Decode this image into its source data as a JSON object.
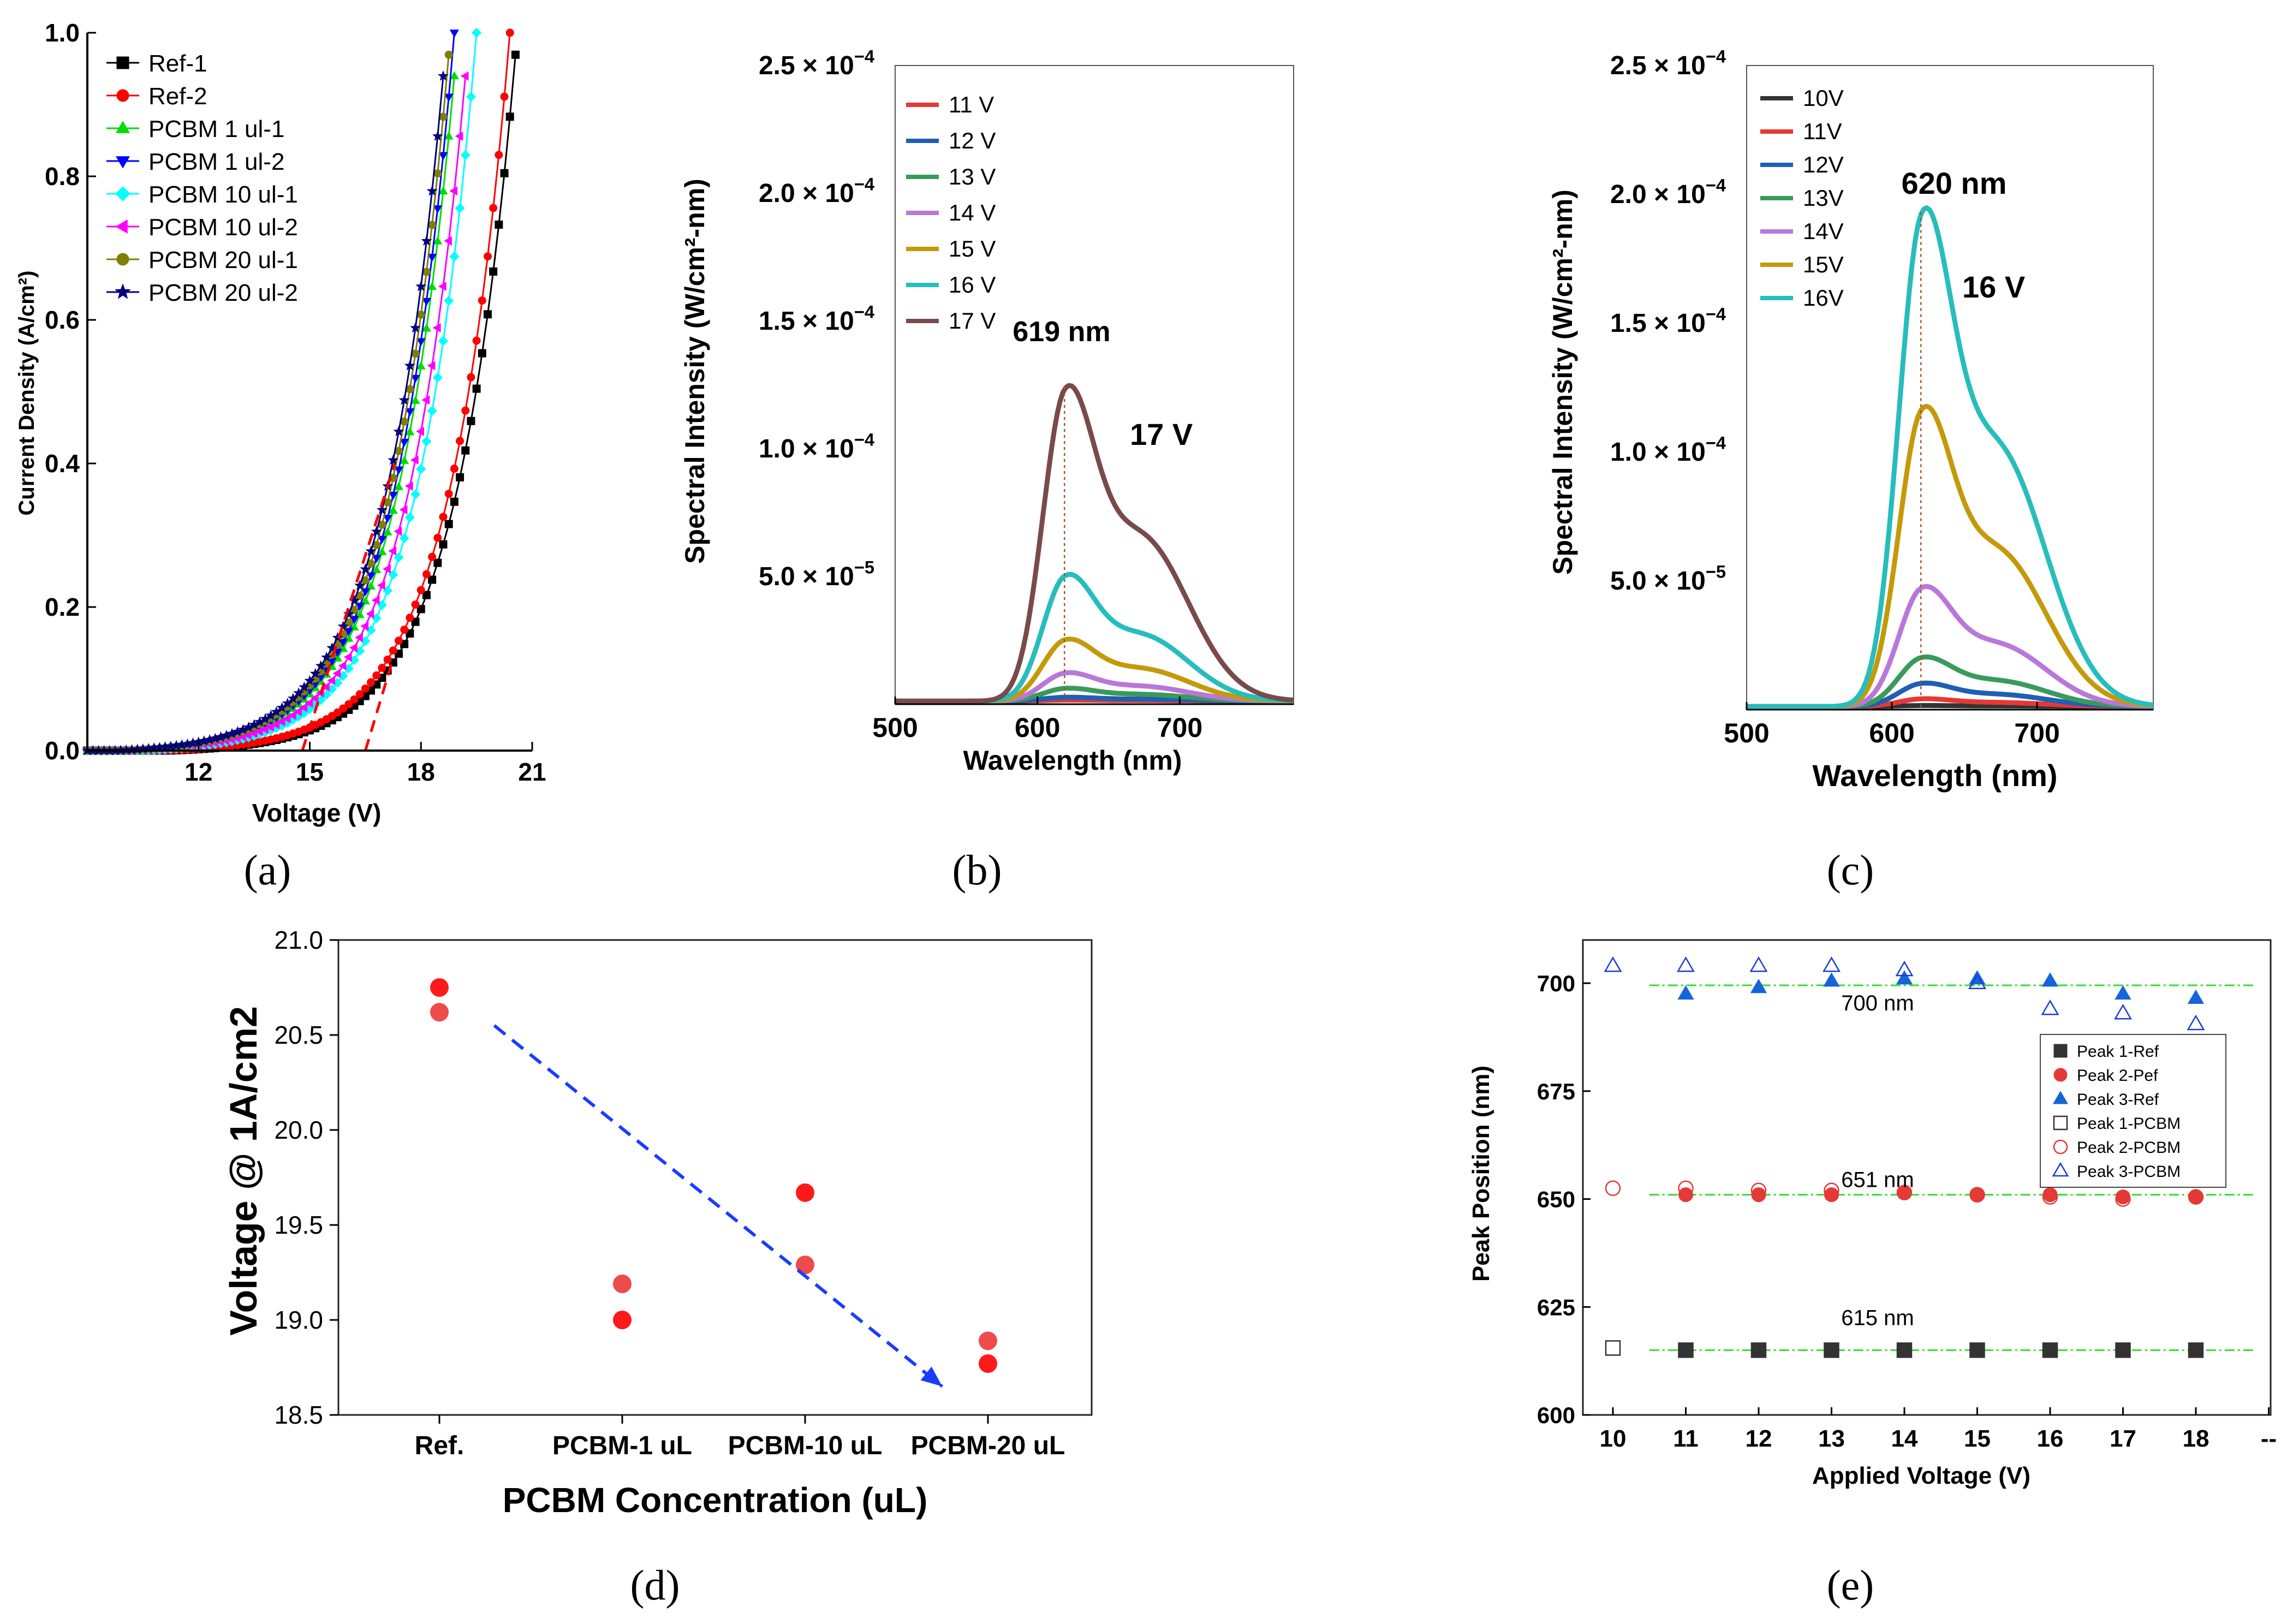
{
  "panels": [
    {
      "id": "a",
      "caption": "(a)",
      "title": "",
      "type": "line",
      "xlabel": "Voltage (V)",
      "ylabel": "Current Density (A/cm²)",
      "xlim": [
        9,
        21
      ],
      "ylim": [
        0,
        1.0
      ],
      "xticks": [
        {
          "v": 12,
          "label": "12"
        },
        {
          "v": 15,
          "label": "15"
        },
        {
          "v": 18,
          "label": "18"
        },
        {
          "v": 21,
          "label": "21"
        }
      ],
      "yticks": [
        {
          "v": 0,
          "label": "0.0"
        },
        {
          "v": 0.2,
          "label": "0.2"
        },
        {
          "v": 0.4,
          "label": "0.4"
        },
        {
          "v": 0.6,
          "label": "0.6"
        },
        {
          "v": 0.8,
          "label": "0.8"
        },
        {
          "v": 1.0,
          "label": "1.0"
        }
      ],
      "series": [
        {
          "name": "Ref-1",
          "color": "#000000",
          "marker": "square",
          "k": 6.2,
          "onset": 11.2,
          "endv": 20.6
        },
        {
          "name": "Ref-2",
          "color": "#ff0000",
          "marker": "circle",
          "k": 6.2,
          "onset": 11.0,
          "endv": 20.4
        },
        {
          "name": "PCBM 1 ul-1",
          "color": "#00dd00",
          "marker": "triangle-up",
          "k": 6.0,
          "onset": 10.6,
          "endv": 19.0
        },
        {
          "name": "PCBM 1 ul-2",
          "color": "#0000ff",
          "marker": "triangle-down",
          "k": 6.0,
          "onset": 10.4,
          "endv": 18.9
        },
        {
          "name": "PCBM 10 ul-1",
          "color": "#00ffff",
          "marker": "diamond",
          "k": 6.0,
          "onset": 10.5,
          "endv": 19.5
        },
        {
          "name": "PCBM 10 ul-2",
          "color": "#ff00ff",
          "marker": "triangle-left",
          "k": 6.0,
          "onset": 10.2,
          "endv": 19.3
        },
        {
          "name": "PCBM 20 ul-1",
          "color": "#808000",
          "marker": "circle",
          "k": 5.8,
          "onset": 10.0,
          "endv": 18.8
        },
        {
          "name": "PCBM 20 ul-2",
          "color": "#000080",
          "marker": "star",
          "k": 5.8,
          "onset": 9.8,
          "endv": 18.7
        }
      ],
      "guides": [
        {
          "color": "#ff0000",
          "points": [
            [
              14.8,
              0
            ],
            [
              17.3,
              0.4
            ]
          ]
        },
        {
          "color": "#ff0000",
          "points": [
            [
              16.5,
              0
            ],
            [
              17.2,
              0.12
            ]
          ]
        }
      ]
    },
    {
      "id": "b",
      "caption": "(b)",
      "title": "",
      "type": "line",
      "xlabel": "Wavelength (nm)",
      "ylabel": "Spectral Intensity (W/cm²-nm)",
      "xlim": [
        500,
        780
      ],
      "ylim": [
        0,
        0.00025
      ],
      "xticks": [
        {
          "v": 500,
          "label": "500"
        },
        {
          "v": 600,
          "label": "600"
        },
        {
          "v": 700,
          "label": "700"
        }
      ],
      "yticks": [
        {
          "v": 5e-05,
          "mant": "5.0 × 10",
          "exp": "−5"
        },
        {
          "v": 0.0001,
          "mant": "1.0 × 10",
          "exp": "−4"
        },
        {
          "v": 0.00015,
          "mant": "1.5 × 10",
          "exp": "−4"
        },
        {
          "v": 0.0002,
          "mant": "2.0 × 10",
          "exp": "−4"
        },
        {
          "v": 0.00025,
          "mant": "2.5 × 10",
          "exp": "−4"
        }
      ],
      "peak_nm": 619,
      "annotations": {
        "peak_label": "619 nm",
        "voltage_label": "17 V"
      },
      "series": [
        {
          "name": "11 V",
          "color": "#e53935",
          "peak": 4e-07
        },
        {
          "name": "12 V",
          "color": "#1f5fb4",
          "peak": 1.5e-06
        },
        {
          "name": "13 V",
          "color": "#3a9a5b",
          "peak": 5e-06
        },
        {
          "name": "14 V",
          "color": "#b877d9",
          "peak": 1.1e-05
        },
        {
          "name": "15 V",
          "color": "#c49a0a",
          "peak": 2.4e-05
        },
        {
          "name": "16 V",
          "color": "#27bdbd",
          "peak": 4.9e-05
        },
        {
          "name": "17 V",
          "color": "#7a4a4a",
          "peak": 0.000122
        }
      ]
    },
    {
      "id": "c",
      "caption": "(c)",
      "title": "",
      "type": "line",
      "xlabel": "Wavelength (nm)",
      "ylabel": "Spectral Intensity (W/cm²-nm)",
      "xlim": [
        500,
        780
      ],
      "ylim": [
        0,
        0.00025
      ],
      "xticks": [
        {
          "v": 500,
          "label": "500"
        },
        {
          "v": 600,
          "label": "600"
        },
        {
          "v": 700,
          "label": "700"
        }
      ],
      "yticks": [
        {
          "v": 5e-05,
          "mant": "5.0 × 10",
          "exp": "−5"
        },
        {
          "v": 0.0001,
          "mant": "1.0 × 10",
          "exp": "−4"
        },
        {
          "v": 0.00015,
          "mant": "1.5 × 10",
          "exp": "−4"
        },
        {
          "v": 0.0002,
          "mant": "2.0 × 10",
          "exp": "−4"
        },
        {
          "v": 0.00025,
          "mant": "2.5 × 10",
          "exp": "−4"
        }
      ],
      "peak_nm": 620,
      "annotations": {
        "peak_label": "620 nm",
        "voltage_label": "16 V"
      },
      "series": [
        {
          "name": "10V",
          "color": "#333333",
          "peak": 4e-07
        },
        {
          "name": "11V",
          "color": "#e53935",
          "peak": 3e-06
        },
        {
          "name": "12V",
          "color": "#1f5fb4",
          "peak": 9e-06
        },
        {
          "name": "13V",
          "color": "#3a9a5b",
          "peak": 1.9e-05
        },
        {
          "name": "14V",
          "color": "#b877d9",
          "peak": 4.6e-05
        },
        {
          "name": "15V",
          "color": "#c49a0a",
          "peak": 0.000115
        },
        {
          "name": "16V",
          "color": "#27bdbd",
          "peak": 0.000191
        }
      ]
    },
    {
      "id": "d",
      "caption": "(d)",
      "title": "",
      "type": "scatter",
      "xlabel": "PCBM Concentration (uL)",
      "ylabel": "Voltage @ 1A/cm2",
      "categories": [
        "Ref.",
        "PCBM-1 uL",
        "PCBM-10 uL",
        "PCBM-20 uL"
      ],
      "ylim": [
        18.5,
        21.0
      ],
      "yticks": [
        {
          "v": 18.5,
          "label": "18.5"
        },
        {
          "v": 19.0,
          "label": "19.0"
        },
        {
          "v": 19.5,
          "label": "19.5"
        },
        {
          "v": 20.0,
          "label": "20.0"
        },
        {
          "v": 20.5,
          "label": "20.5"
        },
        {
          "v": 21.0,
          "label": "21.0"
        }
      ],
      "points": [
        {
          "cat": 0,
          "y": 20.75,
          "color": "#ff1a1a"
        },
        {
          "cat": 0,
          "y": 20.62,
          "color": "#ee4b4b"
        },
        {
          "cat": 1,
          "y": 19.19,
          "color": "#ee4b4b"
        },
        {
          "cat": 1,
          "y": 19.0,
          "color": "#ff1a1a"
        },
        {
          "cat": 2,
          "y": 19.67,
          "color": "#ff1a1a"
        },
        {
          "cat": 2,
          "y": 19.29,
          "color": "#ee4b4b"
        },
        {
          "cat": 3,
          "y": 18.89,
          "color": "#ee4b4b"
        },
        {
          "cat": 3,
          "y": 18.77,
          "color": "#ff1a1a"
        }
      ],
      "trend": {
        "from": [
          0.3,
          20.55
        ],
        "to": [
          2.75,
          18.65
        ],
        "color": "#1a3cff"
      }
    },
    {
      "id": "e",
      "caption": "(e)",
      "title": "",
      "type": "scatter",
      "xlabel": "Applied Voltage (V)",
      "ylabel": "Peak Position (nm)",
      "xticks": [
        "10",
        "11",
        "12",
        "13",
        "14",
        "15",
        "16",
        "17",
        "18",
        "--"
      ],
      "ylim": [
        600,
        710
      ],
      "yticks": [
        {
          "v": 600,
          "label": "600"
        },
        {
          "v": 625,
          "label": "625"
        },
        {
          "v": 650,
          "label": "650"
        },
        {
          "v": 675,
          "label": "675"
        },
        {
          "v": 700,
          "label": "700"
        }
      ],
      "level_labels": [
        {
          "v": 700,
          "label": "700 nm"
        },
        {
          "v": 651,
          "label": "651 nm"
        },
        {
          "v": 615,
          "label": "615 nm"
        }
      ],
      "series": [
        {
          "name": "Peak 1-Ref",
          "marker": "square",
          "filled": true,
          "color": "#333333",
          "x": [
            11,
            12,
            13,
            14,
            15,
            16,
            17,
            18
          ],
          "y": [
            615,
            615,
            615,
            615,
            615,
            615,
            615,
            615
          ]
        },
        {
          "name": "Peak 2-Pef",
          "marker": "circle",
          "filled": true,
          "color": "#e53935",
          "x": [
            11,
            12,
            13,
            14,
            15,
            16,
            17,
            18
          ],
          "y": [
            651,
            651,
            651,
            651.5,
            651,
            651,
            650.5,
            650.5
          ]
        },
        {
          "name": "Peak 3-Ref",
          "marker": "triangle",
          "filled": true,
          "color": "#1565d8",
          "x": [
            11,
            12,
            13,
            14,
            15,
            16,
            17,
            18
          ],
          "y": [
            697.5,
            699,
            700.5,
            701,
            701,
            700.5,
            697.5,
            696.5
          ]
        },
        {
          "name": "Peak 1-PCBM",
          "marker": "square",
          "filled": false,
          "color": "#333333",
          "x": [
            10,
            11,
            12,
            13,
            14,
            15,
            16,
            17,
            18
          ],
          "y": [
            615.5,
            615,
            615,
            615,
            615,
            615,
            615,
            615,
            615
          ]
        },
        {
          "name": "Peak 2-PCBM",
          "marker": "circle",
          "filled": false,
          "color": "#e53935",
          "x": [
            10,
            11,
            12,
            13,
            14,
            15,
            16,
            17,
            18
          ],
          "y": [
            652.5,
            652.5,
            652,
            652,
            651.5,
            651,
            650.5,
            650,
            650.5
          ]
        },
        {
          "name": "Peak 3-PCBM",
          "marker": "triangle",
          "filled": false,
          "color": "#1a3cd8",
          "x": [
            10,
            11,
            12,
            13,
            14,
            15,
            16,
            17,
            18
          ],
          "y": [
            704,
            704,
            704,
            704,
            703,
            700,
            694,
            693,
            690.5
          ]
        }
      ],
      "fits": [
        {
          "y": 699.5,
          "x": [
            10.5,
            18.8
          ],
          "color": "#33dd33"
        },
        {
          "y": 651,
          "x": [
            10.5,
            18.8
          ],
          "color": "#33dd33"
        },
        {
          "y": 615,
          "x": [
            10.5,
            18.8
          ],
          "color": "#33dd33"
        }
      ]
    }
  ]
}
